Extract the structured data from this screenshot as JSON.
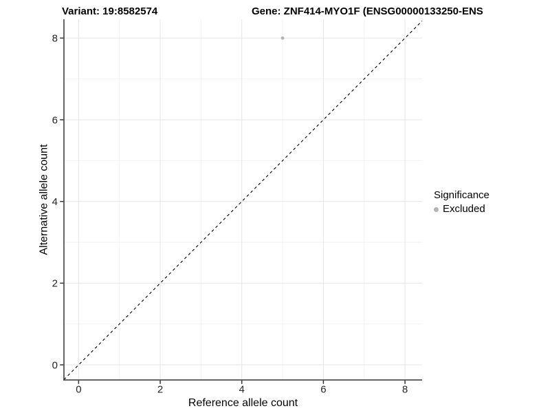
{
  "header": {
    "variant_title": "Variant: 19:8582574",
    "gene_title": "Gene: ZNF414-MYO1F (ENSG00000133250-ENS"
  },
  "legend": {
    "title": "Significance",
    "items": [
      {
        "label": "Excluded",
        "marker": "dot-icon",
        "color": "#b4b4b4"
      }
    ]
  },
  "axes": {
    "x_title": "Reference allele count",
    "y_title": "Alternative allele count"
  },
  "chart_data": {
    "type": "scatter",
    "title": "Variant: 19:8582574",
    "subtitle": "Gene: ZNF414-MYO1F (ENSG00000133250-ENS",
    "xlabel": "Reference allele count",
    "ylabel": "Alternative allele count",
    "xlim": [
      -0.36,
      8.42
    ],
    "ylim": [
      -0.37,
      8.46
    ],
    "x_ticks": [
      0,
      2,
      4,
      6,
      8
    ],
    "y_ticks": [
      0,
      2,
      4,
      6,
      8
    ],
    "x_minor_ticks": [
      1,
      3,
      5,
      7
    ],
    "y_minor_ticks": [
      1,
      3,
      5,
      7
    ],
    "grid": "major+minor",
    "legend_position": "right",
    "legend_title": "Significance",
    "series": [
      {
        "name": "Excluded",
        "color": "#b4b4b4",
        "points": [
          {
            "x": 5,
            "y": 8
          }
        ]
      }
    ],
    "reference_line": {
      "equation": "y = x",
      "style": "dashed",
      "color": "#000000"
    }
  },
  "style": {
    "background": "#ffffff",
    "major_grid_color": "#e5e5e5",
    "minor_grid_color": "#f2f2f2",
    "axis_line_color": "#333333",
    "tick_color": "#333333",
    "tick_label_color": "#262626",
    "point_color": "#b4b4b4",
    "identity_line_color": "#000000"
  }
}
